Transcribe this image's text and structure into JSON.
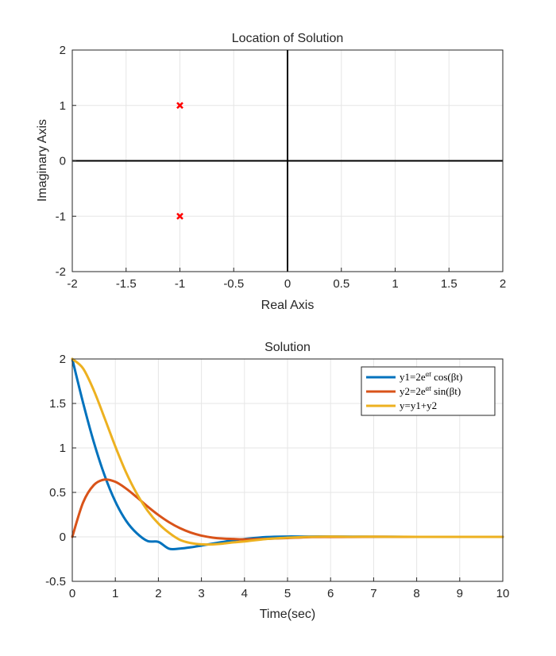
{
  "chart_data": [
    {
      "type": "scatter",
      "title": "Location of Solution",
      "xlabel": "Real Axis",
      "ylabel": "Imaginary Axis",
      "xlim": [
        -2,
        2
      ],
      "ylim": [
        -2,
        2
      ],
      "xticks": [
        -2,
        -1.5,
        -1,
        -0.5,
        0,
        0.5,
        1,
        1.5,
        2
      ],
      "yticks": [
        -2,
        -1,
        0,
        1,
        2
      ],
      "grid": true,
      "marker": "x",
      "marker_color": "#ff0000",
      "points": [
        {
          "x": -1,
          "y": 1
        },
        {
          "x": -1,
          "y": -1
        }
      ]
    },
    {
      "type": "line",
      "title": "Solution",
      "xlabel": "Time(sec)",
      "ylabel": "",
      "xlim": [
        0,
        10
      ],
      "ylim": [
        -0.5,
        2
      ],
      "xticks": [
        0,
        1,
        2,
        3,
        4,
        5,
        6,
        7,
        8,
        9,
        10
      ],
      "yticks": [
        -0.5,
        0,
        0.5,
        1,
        1.5,
        2
      ],
      "grid": true,
      "legend_position": "top-right",
      "x": [
        0,
        0.25,
        0.5,
        0.75,
        1,
        1.25,
        1.5,
        1.75,
        2,
        2.25,
        2.5,
        2.75,
        3,
        3.25,
        3.5,
        3.75,
        4,
        4.5,
        5,
        5.5,
        6,
        6.5,
        7,
        7.5,
        8,
        8.5,
        9,
        9.5,
        10
      ],
      "series": [
        {
          "name": "y1=2e^{αt} cos(βt)",
          "label_main": "y1=2e",
          "label_sup": "αt",
          "label_tail": " cos(βt)",
          "color": "#0072BD",
          "values": [
            2.0,
            1.509,
            1.065,
            0.692,
            0.397,
            0.181,
            0.0399,
            -0.0468,
            -0.0563,
            -0.1332,
            -0.1316,
            -0.1176,
            -0.098,
            -0.077,
            -0.0567,
            -0.0381,
            -0.024,
            -0.0023,
            0.0038,
            0.0029,
            0.0048,
            0.0023,
            0.0014,
            0.0006,
            0.0002,
            -0.0001,
            -0.0001,
            0.0,
            0.0
          ]
        },
        {
          "name": "y2=2e^{αt} sin(βt)",
          "label_main": "y2=2e",
          "label_sup": "αt",
          "label_tail": " sin(βt)",
          "color": "#D95319",
          "values": [
            0.0,
            0.385,
            0.582,
            0.644,
            0.619,
            0.543,
            0.445,
            0.341,
            0.246,
            0.164,
            0.0979,
            0.0484,
            0.0141,
            -0.0075,
            -0.019,
            -0.0237,
            -0.0277,
            -0.0218,
            -0.013,
            -0.003,
            -0.0014,
            -0.0007,
            0.0006,
            0.0005,
            0.0003,
            0.0001,
            0.0,
            0.0,
            0.0
          ]
        },
        {
          "name": "y=y1+y2",
          "label_main": "y=y1+y2",
          "label_sup": "",
          "label_tail": "",
          "color": "#EDB120",
          "values": [
            2.0,
            1.894,
            1.647,
            1.336,
            1.016,
            0.724,
            0.485,
            0.294,
            0.15,
            0.045,
            -0.0337,
            -0.0692,
            -0.0839,
            -0.0845,
            -0.0757,
            -0.0618,
            -0.0517,
            -0.0241,
            -0.0092,
            -0.0001,
            0.0034,
            0.0016,
            0.002,
            0.0011,
            0.0005,
            0.0,
            -0.0001,
            0.0,
            0.0
          ]
        }
      ]
    }
  ]
}
